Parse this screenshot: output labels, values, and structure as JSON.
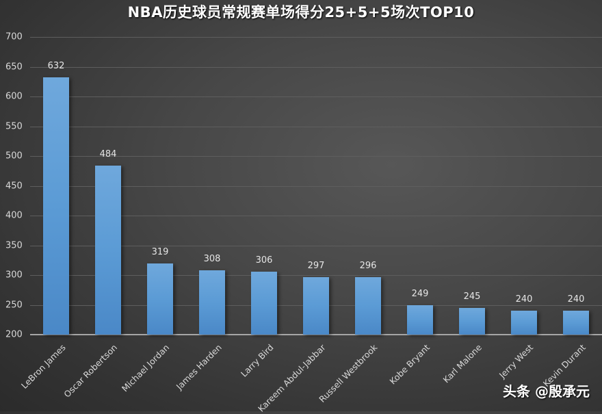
{
  "chart_data": {
    "type": "bar",
    "title": "NBA历史球员常规赛单场得分25+5+5场次TOP10",
    "xlabel": "",
    "ylabel": "",
    "ylim": [
      200,
      700
    ],
    "yticks": [
      200,
      250,
      300,
      350,
      400,
      450,
      500,
      550,
      600,
      650,
      700
    ],
    "grid": true,
    "legend": null,
    "categories": [
      "LeBron James",
      "Oscar Robertson",
      "Michael Jordan",
      "James Harden",
      "Larry Bird",
      "Kareem Abdul-Jabbar",
      "Russell Westbrook",
      "Kobe Bryant",
      "Karl Malone",
      "Jerry West",
      "Kevin Durant"
    ],
    "values": [
      632,
      484,
      319,
      308,
      306,
      297,
      296,
      249,
      245,
      240,
      240
    ],
    "bar_color": "#5b9bd5",
    "background_color": "#404040"
  },
  "watermark": "头条 @殷承元"
}
